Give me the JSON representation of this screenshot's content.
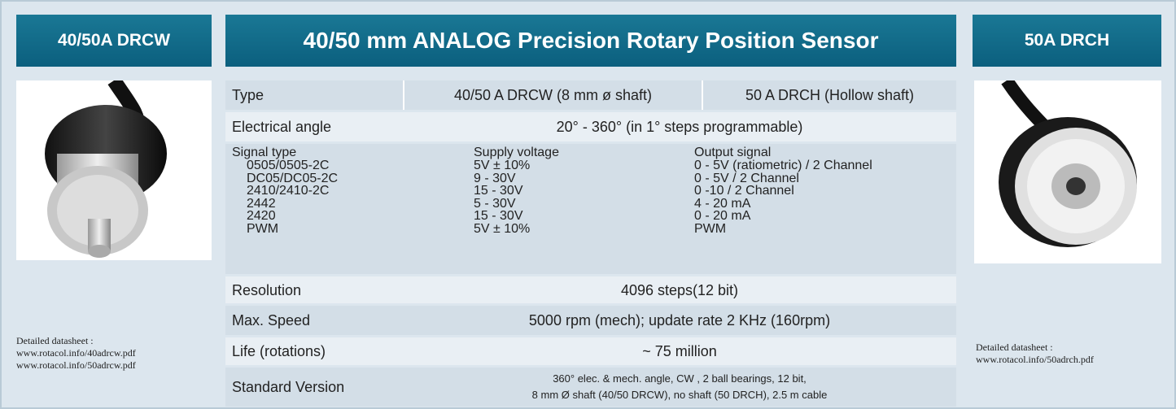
{
  "header": {
    "left_title": "40/50A DRCW",
    "center_title": "40/50 mm ANALOG Precision Rotary Position Sensor",
    "right_title": "50A DRCH"
  },
  "table": {
    "type": {
      "label": "Type",
      "col1": "40/50 A DRCW (8 mm ø shaft)",
      "col2": "50 A DRCH (Hollow shaft)"
    },
    "electrical_angle": {
      "label": "Electrical angle",
      "value": "20° - 360° (in 1° steps programmable)"
    },
    "signal": {
      "headers": [
        "Signal type",
        "Supply voltage",
        "Output signal"
      ],
      "rows": [
        [
          "0505/0505-2C",
          "5V ± 10%",
          "0 - 5V (ratiometric) / 2 Channel"
        ],
        [
          "DC05/DC05-2C",
          "9 - 30V",
          "0 - 5V / 2 Channel"
        ],
        [
          "2410/2410-2C",
          "15 - 30V",
          "0 -10  / 2 Channel"
        ],
        [
          "2442",
          "5 - 30V",
          "4 - 20 mA"
        ],
        [
          "2420",
          "15 - 30V",
          "0 - 20 mA"
        ],
        [
          "PWM",
          "5V ± 10%",
          "PWM"
        ]
      ]
    },
    "resolution": {
      "label": "Resolution",
      "value": "4096 steps(12 bit)"
    },
    "max_speed": {
      "label": "Max. Speed",
      "value": "5000 rpm (mech); update rate 2 KHz (160rpm)"
    },
    "life": {
      "label": "Life (rotations)",
      "value": "~ 75 million"
    },
    "standard": {
      "label": "Standard Version",
      "lines": [
        "360° elec. & mech. angle,  CW , 2 ball bearings, 12 bit,",
        "8 mm Ø shaft (40/50 DRCW), no shaft (50 DRCH), 2.5 m cable"
      ]
    }
  },
  "left_note": {
    "label": "Detailed datasheet :",
    "links": [
      "www.rotacol.info/40adrcw.pdf",
      "www.rotacol.info/50adrcw.pdf"
    ]
  },
  "right_note": {
    "label": "Detailed datasheet :",
    "links": [
      "www.rotacol.info/50adrch.pdf"
    ]
  }
}
